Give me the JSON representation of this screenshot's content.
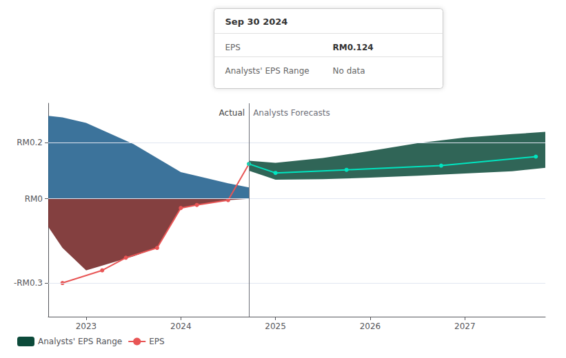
{
  "chart_data": {
    "type": "line",
    "xlim": [
      2022.6,
      2027.85
    ],
    "xticks": [
      2023,
      2024,
      2025,
      2026,
      2027
    ],
    "ylim": [
      -0.42,
      0.34
    ],
    "yticks": [
      {
        "value": 0.2,
        "label": "RM0.2"
      },
      {
        "value": 0.0,
        "label": "RM0"
      },
      {
        "value": -0.3,
        "label": "-RM0.3"
      }
    ],
    "grid": true,
    "legend": "lower left",
    "vline": 2024.72,
    "annotations": [
      "Actual",
      "Analysts Forecasts"
    ],
    "tooltip": {
      "title": "Sep 30 2024",
      "rows": [
        {
          "label": "EPS",
          "value": "RM0.124"
        },
        {
          "label": "Analysts' EPS Range",
          "value": "No data"
        }
      ]
    },
    "series": [
      {
        "type": "band",
        "color": "#1a5a8a",
        "x": [
          2022.6,
          2022.75,
          2023.0,
          2023.5,
          2024.0,
          2024.5,
          2024.72
        ],
        "lower": [
          0.0,
          0.0,
          0.0,
          0.0,
          0.0,
          0.0,
          0.0
        ],
        "upper": [
          0.295,
          0.29,
          0.27,
          0.195,
          0.095,
          0.055,
          0.04
        ]
      },
      {
        "type": "band",
        "color": "#6e1f1f",
        "x": [
          2022.6,
          2022.75,
          2023.0,
          2023.5,
          2023.75,
          2024.0,
          2024.17,
          2024.5,
          2024.72
        ],
        "lower": [
          -0.1,
          -0.175,
          -0.255,
          -0.205,
          -0.175,
          -0.033,
          -0.022,
          -0.005,
          0.0
        ],
        "upper": [
          0.0,
          0.0,
          0.0,
          0.0,
          0.0,
          0.0,
          0.0,
          0.0,
          0.0
        ]
      },
      {
        "name": "Analysts' EPS Range",
        "type": "band",
        "color": "#0c4a3a",
        "x": [
          2024.72,
          2025.0,
          2025.5,
          2026.0,
          2026.5,
          2027.0,
          2027.5,
          2027.85
        ],
        "lower": [
          0.1,
          0.068,
          0.07,
          0.075,
          0.082,
          0.09,
          0.098,
          0.11
        ],
        "upper": [
          0.135,
          0.128,
          0.145,
          0.17,
          0.198,
          0.218,
          0.23,
          0.238
        ]
      },
      {
        "name": "EPS",
        "type": "line",
        "color": "#e85555",
        "marker": "circle",
        "x": [
          2022.75,
          2023.17,
          2023.42,
          2023.75,
          2024.0,
          2024.17,
          2024.5,
          2024.72
        ],
        "values": [
          -0.3,
          -0.255,
          -0.21,
          -0.175,
          -0.033,
          -0.022,
          -0.005,
          0.124
        ]
      },
      {
        "type": "line",
        "color": "#00e5c0",
        "marker": "circle",
        "x": [
          2024.72,
          2025.0,
          2025.75,
          2026.75,
          2027.75
        ],
        "values": [
          0.124,
          0.092,
          0.103,
          0.118,
          0.15
        ]
      }
    ]
  }
}
